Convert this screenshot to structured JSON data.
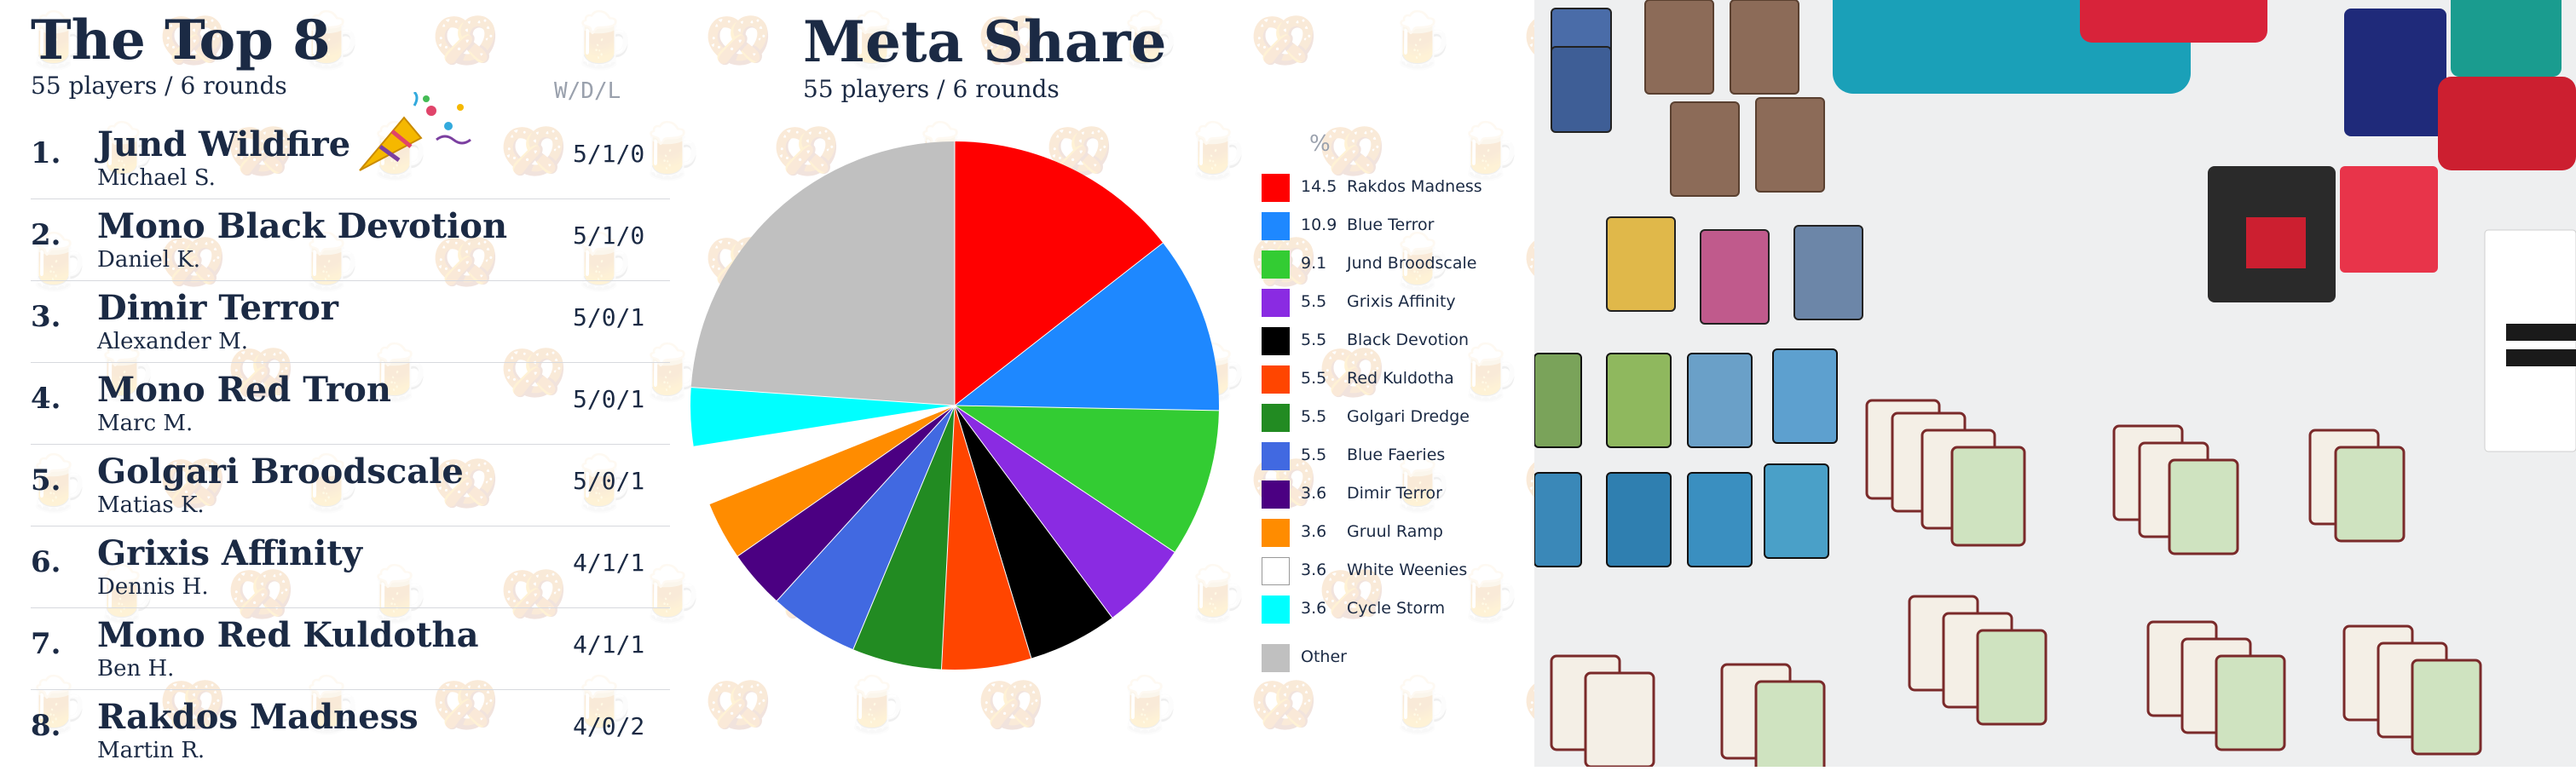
{
  "left": {
    "title": "The Top 8",
    "subtitle": "55 players / 6 rounds",
    "wdl_header": "W/D/L",
    "party_icon": "party-popper-icon",
    "standings": [
      {
        "rank": "1.",
        "deck": "Jund Wildfire",
        "player": "Michael S.",
        "wdl": "5/1/0"
      },
      {
        "rank": "2.",
        "deck": "Mono Black Devotion",
        "player": "Daniel K.",
        "wdl": "5/1/0"
      },
      {
        "rank": "3.",
        "deck": "Dimir Terror",
        "player": "Alexander M.",
        "wdl": "5/0/1"
      },
      {
        "rank": "4.",
        "deck": "Mono Red Tron",
        "player": "Marc M.",
        "wdl": "5/0/1"
      },
      {
        "rank": "5.",
        "deck": "Golgari Broodscale",
        "player": "Matias K.",
        "wdl": "5/0/1"
      },
      {
        "rank": "6.",
        "deck": "Grixis Affinity",
        "player": "Dennis H.",
        "wdl": "4/1/1"
      },
      {
        "rank": "7.",
        "deck": "Mono Red Kuldotha",
        "player": "Ben H.",
        "wdl": "4/1/1"
      },
      {
        "rank": "8.",
        "deck": "Rakdos Madness",
        "player": "Martin R.",
        "wdl": "4/0/2"
      }
    ]
  },
  "chart_data": {
    "type": "pie",
    "title": "Meta Share",
    "subtitle": "55 players / 6 rounds",
    "legend_header": "%",
    "legend_position": "right",
    "slices": [
      {
        "label": "Rakdos Madness",
        "value": 14.5,
        "value_label": "14.5",
        "color": "#ff0000"
      },
      {
        "label": "Blue Terror",
        "value": 10.9,
        "value_label": "10.9",
        "color": "#1e88ff"
      },
      {
        "label": "Jund Broodscale",
        "value": 9.1,
        "value_label": "9.1",
        "color": "#33cc33"
      },
      {
        "label": "Grixis Affinity",
        "value": 5.5,
        "value_label": "5.5",
        "color": "#8a2be2"
      },
      {
        "label": "Black Devotion",
        "value": 5.5,
        "value_label": "5.5",
        "color": "#000000"
      },
      {
        "label": "Red Kuldotha",
        "value": 5.5,
        "value_label": "5.5",
        "color": "#ff4500"
      },
      {
        "label": "Golgari Dredge",
        "value": 5.5,
        "value_label": "5.5",
        "color": "#228b22"
      },
      {
        "label": "Blue Faeries",
        "value": 5.5,
        "value_label": "5.5",
        "color": "#4169e1"
      },
      {
        "label": "Dimir Terror",
        "value": 3.6,
        "value_label": "3.6",
        "color": "#4b0082"
      },
      {
        "label": "Gruul Ramp",
        "value": 3.6,
        "value_label": "3.6",
        "color": "#ff8c00"
      },
      {
        "label": "White Weenies",
        "value": 3.6,
        "value_label": "3.6",
        "color": "#ffffff"
      },
      {
        "label": "Cycle Storm",
        "value": 3.6,
        "value_label": "3.6",
        "color": "#00ffff"
      },
      {
        "label": "Other",
        "value": 24.0,
        "value_label": "",
        "color": "#c0c0c0"
      }
    ]
  }
}
